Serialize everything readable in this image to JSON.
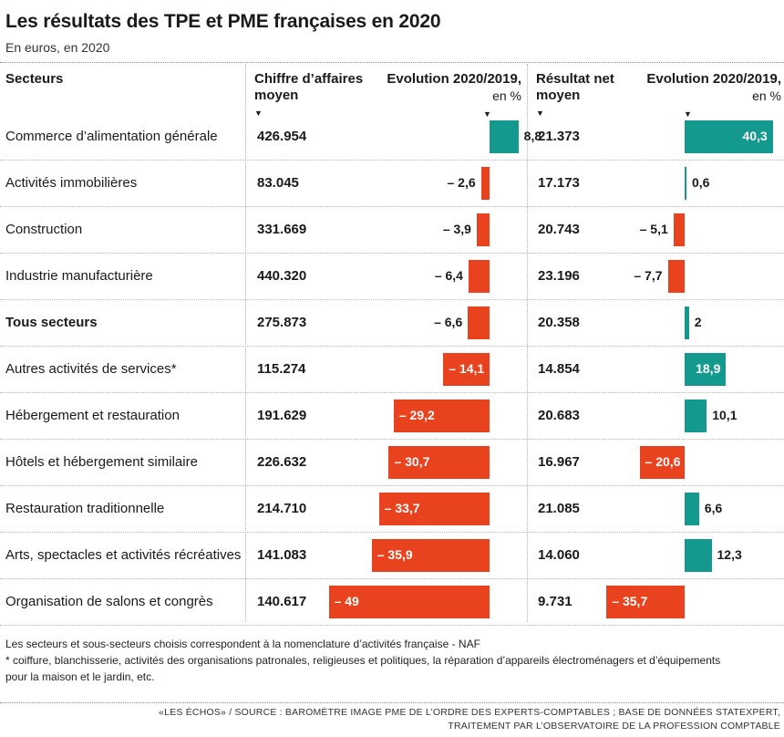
{
  "title": "Les résultats des TPE et PME françaises en 2020",
  "subtitle": "En euros, en 2020",
  "headers": {
    "sector": "Secteurs",
    "ca_line1": "Chiffre d’affaires",
    "ca_line2": "moyen",
    "evo_line1": "Evolution 2020/2019,",
    "evo_line2": "en %",
    "rn_line1": "Résultat net",
    "rn_line2": "moyen",
    "evo2_line1": "Evolution 2020/2019,",
    "evo2_line2": "en %"
  },
  "colors": {
    "positive": "#14998f",
    "negative": "#e8421e"
  },
  "chart_data": {
    "type": "table",
    "columns": [
      "Secteurs",
      "Chiffre d’affaires moyen",
      "Evolution 2020/2019, en %",
      "Résultat net moyen",
      "Evolution 2020/2019, en %"
    ],
    "rows": [
      {
        "sector": "Commerce d’alimentation générale",
        "ca": "426.954",
        "ca_evo": 8.8,
        "ca_evo_label": "8,8",
        "rn": "21.373",
        "rn_evo": 40.3,
        "rn_evo_label": "40,3"
      },
      {
        "sector": "Activités immobilières",
        "ca": "83.045",
        "ca_evo": -2.6,
        "ca_evo_label": "– 2,6",
        "rn": "17.173",
        "rn_evo": 0.6,
        "rn_evo_label": "0,6"
      },
      {
        "sector": "Construction",
        "ca": "331.669",
        "ca_evo": -3.9,
        "ca_evo_label": "– 3,9",
        "rn": "20.743",
        "rn_evo": -5.1,
        "rn_evo_label": "– 5,1"
      },
      {
        "sector": "Industrie manufacturière",
        "ca": "440.320",
        "ca_evo": -6.4,
        "ca_evo_label": "– 6,4",
        "rn": "23.196",
        "rn_evo": -7.7,
        "rn_evo_label": "– 7,7"
      },
      {
        "sector": "Tous secteurs",
        "bold": true,
        "ca": "275.873",
        "ca_evo": -6.6,
        "ca_evo_label": "– 6,6",
        "rn": "20.358",
        "rn_evo": 2,
        "rn_evo_label": "2"
      },
      {
        "sector": "Autres activités de services*",
        "ca": "115.274",
        "ca_evo": -14.1,
        "ca_evo_label": "– 14,1",
        "rn": "14.854",
        "rn_evo": 18.9,
        "rn_evo_label": "18,9"
      },
      {
        "sector": "Hébergement et restauration",
        "ca": "191.629",
        "ca_evo": -29.2,
        "ca_evo_label": "– 29,2",
        "rn": "20.683",
        "rn_evo": 10.1,
        "rn_evo_label": "10,1"
      },
      {
        "sector": "Hôtels et hébergement similaire",
        "ca": "226.632",
        "ca_evo": -30.7,
        "ca_evo_label": "– 30,7",
        "rn": "16.967",
        "rn_evo": -20.6,
        "rn_evo_label": "– 20,6"
      },
      {
        "sector": "Restauration traditionnelle",
        "ca": "214.710",
        "ca_evo": -33.7,
        "ca_evo_label": "– 33,7",
        "rn": "21.085",
        "rn_evo": 6.6,
        "rn_evo_label": "6,6"
      },
      {
        "sector": "Arts, spectacles et activités récréatives",
        "ca": "141.083",
        "ca_evo": -35.9,
        "ca_evo_label": "– 35,9",
        "rn": "14.060",
        "rn_evo": 12.3,
        "rn_evo_label": "12,3"
      },
      {
        "sector": "Organisation de salons  et congrès",
        "ca": "140.617",
        "ca_evo": -49,
        "ca_evo_label": "– 49",
        "rn": "9.731",
        "rn_evo": -35.7,
        "rn_evo_label": "– 35,7"
      }
    ]
  },
  "notes": {
    "line1": "Les secteurs et sous-secteurs choisis correspondent à la nomenclature d’activités française - NAF",
    "line2": "* coiffure, blanchisserie, activités des organisations patronales, religieuses et politiques, la réparation d’appareils électroménagers et d’équipements",
    "line3": "pour la maison et le jardin, etc."
  },
  "source": {
    "line1": "«LES ÉCHOS» / SOURCE : BAROMÈTRE IMAGE PME DE L’ORDRE DES EXPERTS-COMPTABLES ; BASE DE DONNÉES STATEXPERT,",
    "line2": "TRAITEMENT PAR L’OBSERVATOIRE DE LA PROFESSION COMPTABLE"
  }
}
